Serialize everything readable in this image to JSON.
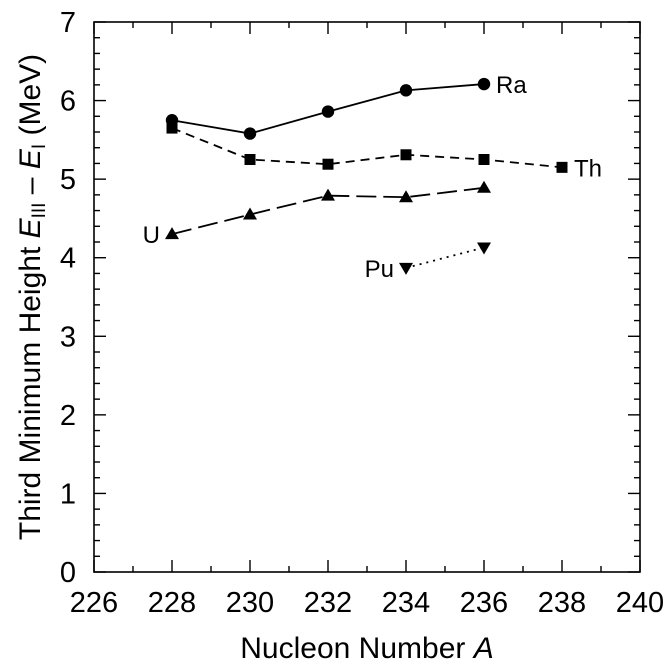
{
  "chart_data": {
    "type": "line",
    "xlabel": "Nucleon Number A",
    "xlabel_parts": [
      "Nucleon Number ",
      "A"
    ],
    "ylabel": "Third Minimum Height EIII – EI (MeV)",
    "ylabel_parts": {
      "prefix": "Third Minimum Height ",
      "e1": "E",
      "sub1": "III",
      "dash": " – ",
      "e2": "E",
      "sub2": "I",
      "suffix": " (MeV)"
    },
    "xlim": [
      226,
      240
    ],
    "ylim": [
      0,
      7
    ],
    "x_major_ticks": [
      226,
      228,
      230,
      232,
      234,
      236,
      238,
      240
    ],
    "x_tick_labels": [
      "226",
      "228",
      "230",
      "232",
      "234",
      "236",
      "238",
      "240"
    ],
    "y_major_ticks": [
      0,
      1,
      2,
      3,
      4,
      5,
      6,
      7
    ],
    "y_tick_labels": [
      "0",
      "1",
      "2",
      "3",
      "4",
      "5",
      "6",
      "7"
    ],
    "x_minor_step": 1,
    "y_minor_step": 0.2,
    "grid": false,
    "series": [
      {
        "name": "Ra",
        "marker": "circle",
        "line": "solid",
        "color": "#000000",
        "x": [
          228,
          230,
          232,
          234,
          236
        ],
        "y": [
          5.75,
          5.58,
          5.86,
          6.13,
          6.21
        ],
        "label_anchor": "end"
      },
      {
        "name": "Th",
        "marker": "square",
        "line": "dashed",
        "color": "#000000",
        "x": [
          228,
          230,
          232,
          234,
          236,
          238
        ],
        "y": [
          5.65,
          5.25,
          5.19,
          5.31,
          5.25,
          5.15
        ],
        "label_anchor": "end"
      },
      {
        "name": "U",
        "marker": "triangle-up",
        "line": "long-dashed",
        "color": "#000000",
        "x": [
          228,
          230,
          232,
          234,
          236
        ],
        "y": [
          4.3,
          4.55,
          4.79,
          4.77,
          4.89
        ],
        "label_anchor": "start"
      },
      {
        "name": "Pu",
        "marker": "triangle-down",
        "line": "dotted",
        "color": "#000000",
        "x": [
          234,
          236
        ],
        "y": [
          3.87,
          4.13
        ],
        "label_anchor": "start"
      }
    ]
  }
}
